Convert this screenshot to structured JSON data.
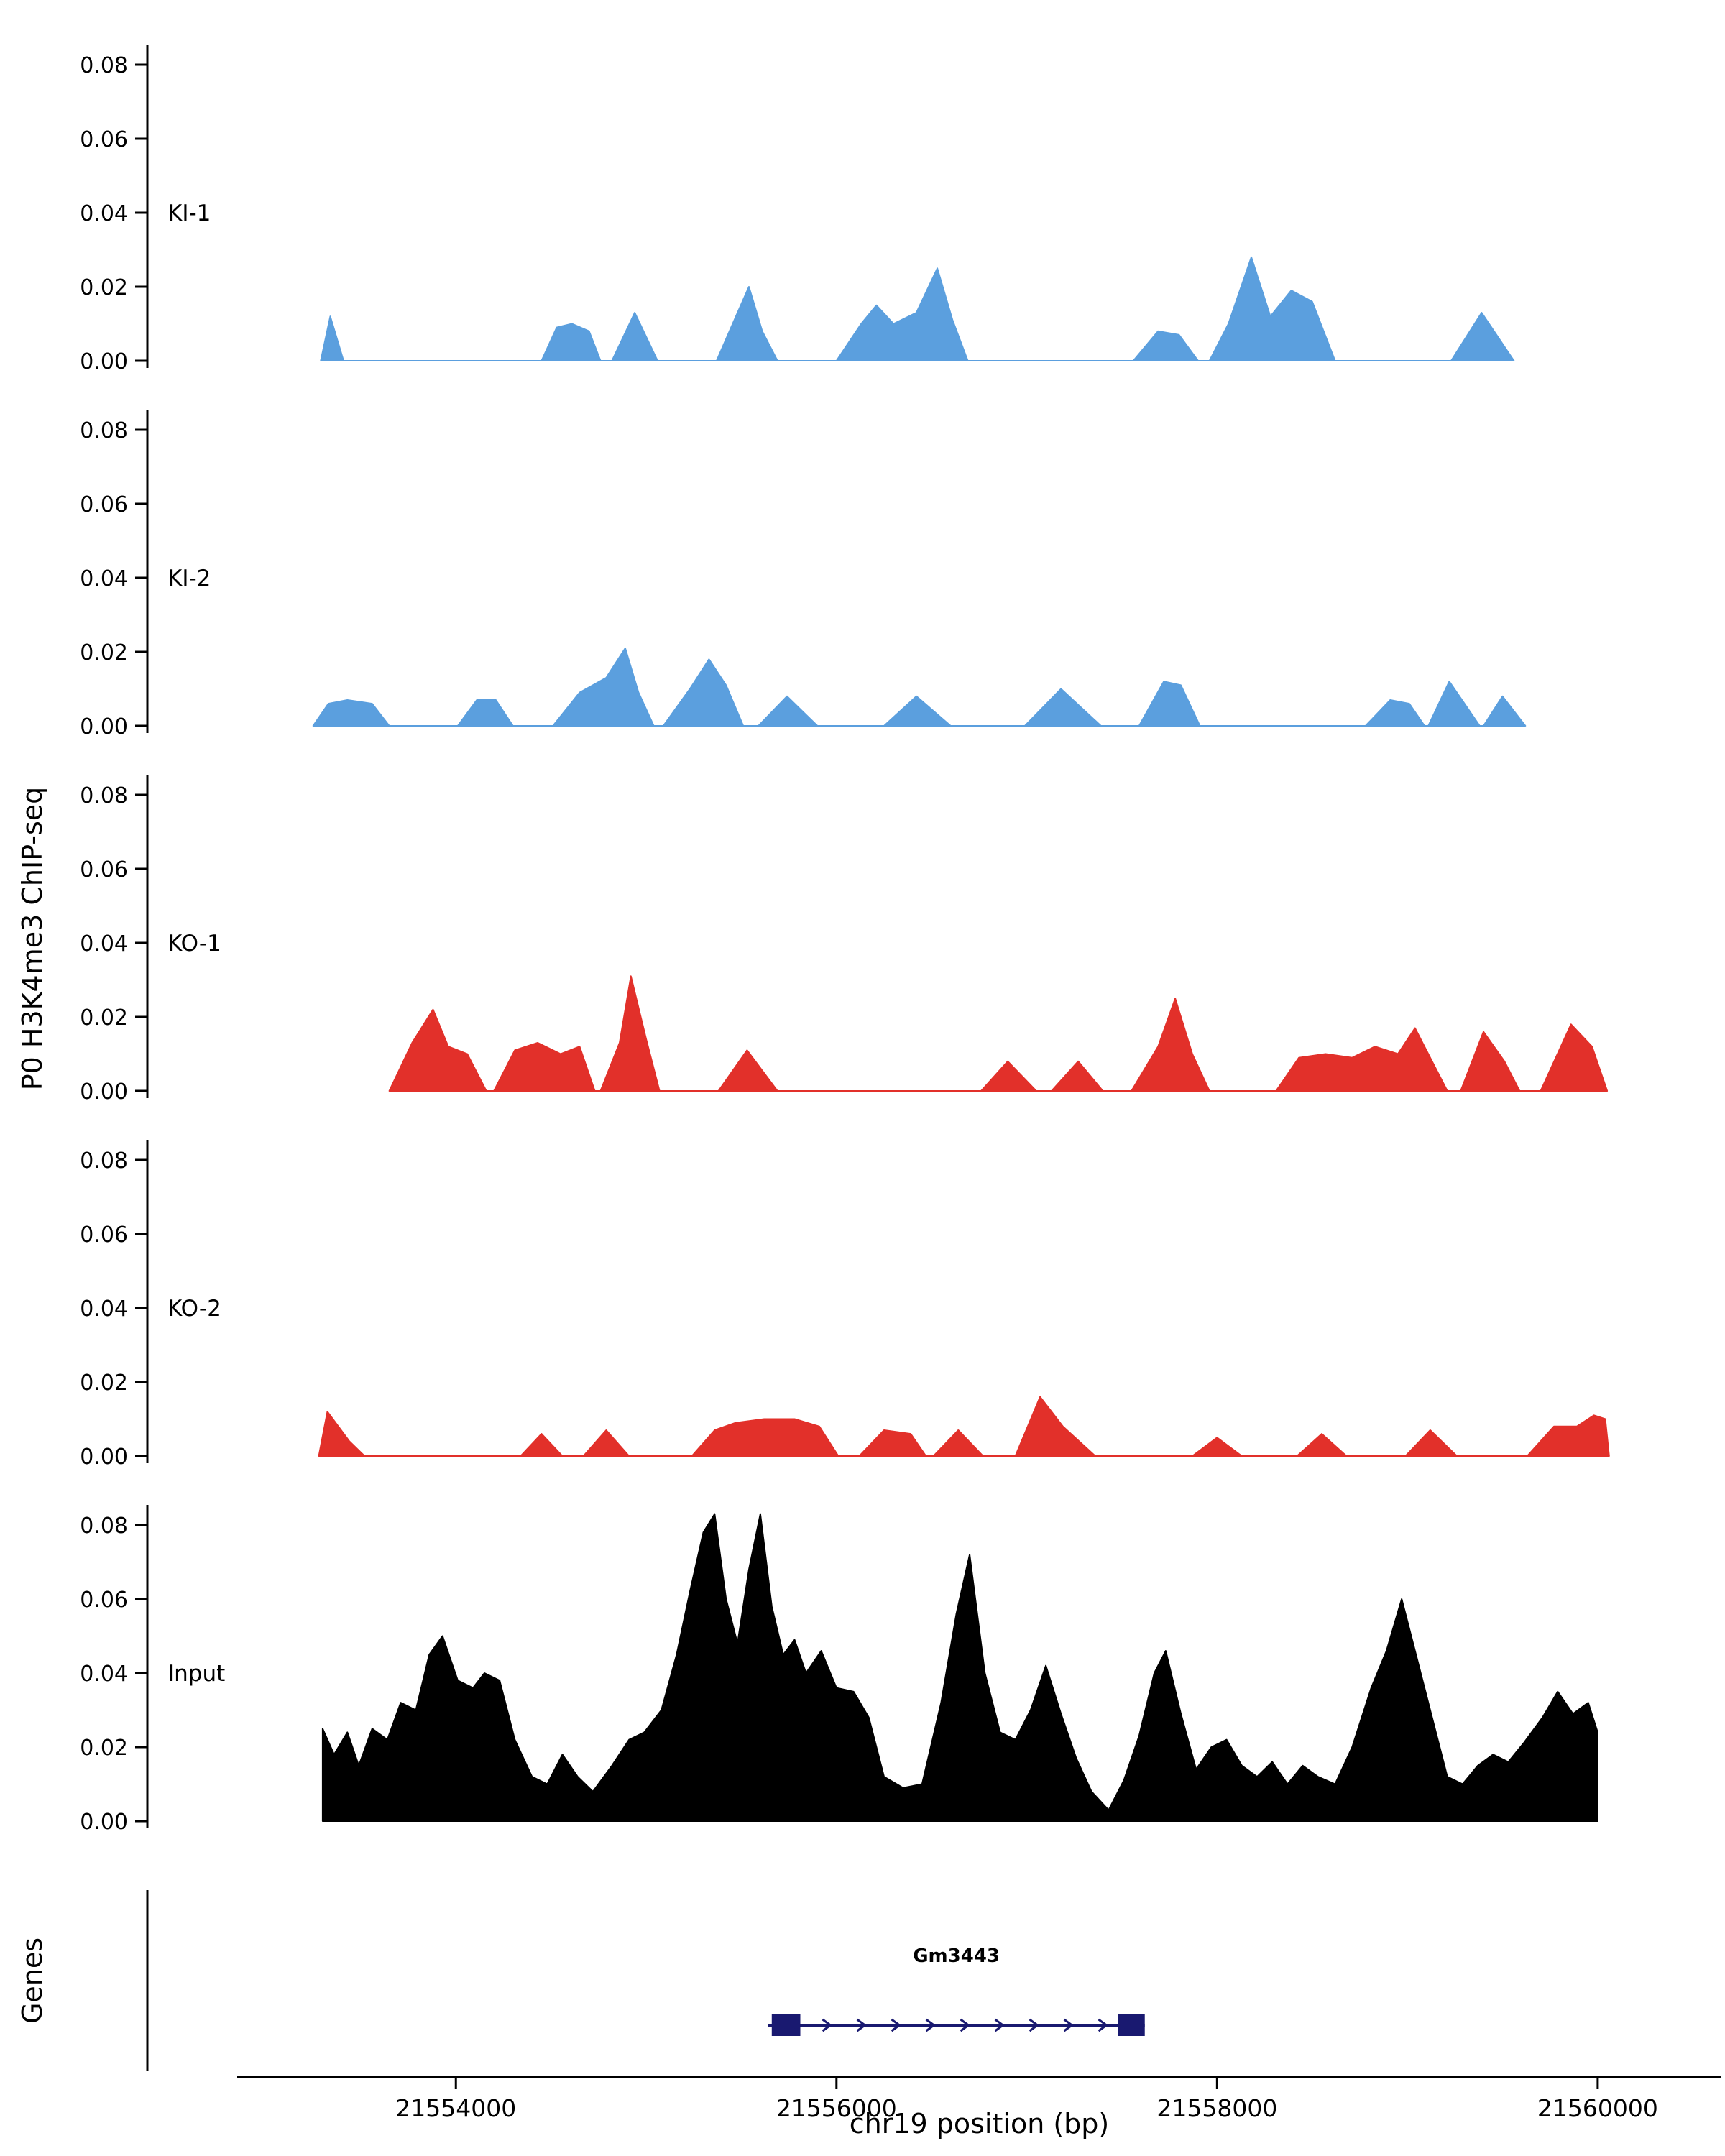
{
  "chart_data": {
    "type": "area",
    "title": "",
    "xlabel": "chr19 position (bp)",
    "ylabel": "P0 H3K4me3 ChIP-seq",
    "genes_panel_label": "Genes",
    "x_axis": {
      "min": 21552900,
      "max": 21560650,
      "ticks": [
        21554000,
        21556000,
        21558000,
        21560000
      ],
      "tick_labels": [
        "21554000",
        "21556000",
        "21558000",
        "21560000"
      ]
    },
    "y_axis": {
      "min": 0,
      "max": 0.08,
      "ticks": [
        0,
        0.02,
        0.04,
        0.06,
        0.08
      ],
      "tick_labels": [
        "0.00",
        "0.02",
        "0.04",
        "0.06",
        "0.08"
      ]
    },
    "colors": {
      "ki_blue": "#5B9FDE",
      "ko_red": "#E2302A",
      "input_black": "#000000",
      "gene_navy": "#191970"
    },
    "tracks": [
      {
        "label": "KI-1",
        "color": "#5B9FDE",
        "points": [
          [
            21553290,
            0
          ],
          [
            21553340,
            0.012
          ],
          [
            21553410,
            0
          ],
          [
            21554450,
            0
          ],
          [
            21554530,
            0.009
          ],
          [
            21554610,
            0.01
          ],
          [
            21554700,
            0.008
          ],
          [
            21554760,
            0
          ],
          [
            21554820,
            0
          ],
          [
            21554940,
            0.013
          ],
          [
            21555060,
            0
          ],
          [
            21555370,
            0
          ],
          [
            21555480,
            0.013
          ],
          [
            21555540,
            0.02
          ],
          [
            21555610,
            0.008
          ],
          [
            21555690,
            0
          ],
          [
            21556000,
            0
          ],
          [
            21556130,
            0.01
          ],
          [
            21556210,
            0.015
          ],
          [
            21556300,
            0.01
          ],
          [
            21556420,
            0.013
          ],
          [
            21556530,
            0.025
          ],
          [
            21556610,
            0.011
          ],
          [
            21556690,
            0
          ],
          [
            21557560,
            0
          ],
          [
            21557690,
            0.008
          ],
          [
            21557800,
            0.007
          ],
          [
            21557900,
            0
          ],
          [
            21557960,
            0
          ],
          [
            21558060,
            0.01
          ],
          [
            21558180,
            0.028
          ],
          [
            21558280,
            0.012
          ],
          [
            21558390,
            0.019
          ],
          [
            21558500,
            0.016
          ],
          [
            21558620,
            0
          ],
          [
            21559230,
            0
          ],
          [
            21559390,
            0.013
          ],
          [
            21559560,
            0
          ]
        ]
      },
      {
        "label": "KI-2",
        "color": "#5B9FDE",
        "points": [
          [
            21553250,
            0
          ],
          [
            21553330,
            0.006
          ],
          [
            21553430,
            0.007
          ],
          [
            21553560,
            0.006
          ],
          [
            21553650,
            0
          ],
          [
            21554010,
            0
          ],
          [
            21554110,
            0.007
          ],
          [
            21554210,
            0.007
          ],
          [
            21554300,
            0
          ],
          [
            21554510,
            0
          ],
          [
            21554650,
            0.009
          ],
          [
            21554790,
            0.013
          ],
          [
            21554890,
            0.021
          ],
          [
            21554960,
            0.009
          ],
          [
            21555040,
            0
          ],
          [
            21555090,
            0
          ],
          [
            21555230,
            0.01
          ],
          [
            21555330,
            0.018
          ],
          [
            21555420,
            0.011
          ],
          [
            21555510,
            0
          ],
          [
            21555590,
            0
          ],
          [
            21555740,
            0.008
          ],
          [
            21555900,
            0
          ],
          [
            21556250,
            0
          ],
          [
            21556420,
            0.008
          ],
          [
            21556600,
            0
          ],
          [
            21556990,
            0
          ],
          [
            21557180,
            0.01
          ],
          [
            21557390,
            0
          ],
          [
            21557590,
            0
          ],
          [
            21557720,
            0.012
          ],
          [
            21557810,
            0.011
          ],
          [
            21557910,
            0
          ],
          [
            21558780,
            0
          ],
          [
            21558910,
            0.007
          ],
          [
            21559010,
            0.006
          ],
          [
            21559090,
            0
          ],
          [
            21559110,
            0
          ],
          [
            21559220,
            0.012
          ],
          [
            21559300,
            0.006
          ],
          [
            21559380,
            0
          ],
          [
            21559400,
            0
          ],
          [
            21559500,
            0.008
          ],
          [
            21559620,
            0
          ]
        ]
      },
      {
        "label": "KO-1",
        "color": "#E2302A",
        "points": [
          [
            21553650,
            0
          ],
          [
            21553770,
            0.013
          ],
          [
            21553880,
            0.022
          ],
          [
            21553960,
            0.012
          ],
          [
            21554060,
            0.01
          ],
          [
            21554160,
            0
          ],
          [
            21554200,
            0
          ],
          [
            21554310,
            0.011
          ],
          [
            21554430,
            0.013
          ],
          [
            21554550,
            0.01
          ],
          [
            21554650,
            0.012
          ],
          [
            21554730,
            0
          ],
          [
            21554760,
            0
          ],
          [
            21554860,
            0.013
          ],
          [
            21554920,
            0.031
          ],
          [
            21555000,
            0.014
          ],
          [
            21555070,
            0
          ],
          [
            21555380,
            0
          ],
          [
            21555530,
            0.011
          ],
          [
            21555690,
            0
          ],
          [
            21556760,
            0
          ],
          [
            21556900,
            0.008
          ],
          [
            21557050,
            0
          ],
          [
            21557130,
            0
          ],
          [
            21557270,
            0.008
          ],
          [
            21557400,
            0
          ],
          [
            21557550,
            0
          ],
          [
            21557690,
            0.012
          ],
          [
            21557780,
            0.025
          ],
          [
            21557870,
            0.01
          ],
          [
            21557960,
            0
          ],
          [
            21558310,
            0
          ],
          [
            21558430,
            0.009
          ],
          [
            21558570,
            0.01
          ],
          [
            21558710,
            0.009
          ],
          [
            21558830,
            0.012
          ],
          [
            21558950,
            0.01
          ],
          [
            21559040,
            0.017
          ],
          [
            21559130,
            0.008
          ],
          [
            21559210,
            0
          ],
          [
            21559280,
            0
          ],
          [
            21559400,
            0.016
          ],
          [
            21559510,
            0.008
          ],
          [
            21559590,
            0
          ],
          [
            21559700,
            0
          ],
          [
            21559860,
            0.018
          ],
          [
            21559970,
            0.012
          ],
          [
            21560050,
            0
          ]
        ]
      },
      {
        "label": "KO-2",
        "color": "#E2302A",
        "points": [
          [
            21553280,
            0
          ],
          [
            21553325,
            0.012
          ],
          [
            21553440,
            0.004
          ],
          [
            21553520,
            0
          ],
          [
            21554340,
            0
          ],
          [
            21554450,
            0.006
          ],
          [
            21554560,
            0
          ],
          [
            21554670,
            0
          ],
          [
            21554790,
            0.007
          ],
          [
            21554910,
            0
          ],
          [
            21555240,
            0
          ],
          [
            21555360,
            0.007
          ],
          [
            21555470,
            0.009
          ],
          [
            21555620,
            0.01
          ],
          [
            21555780,
            0.01
          ],
          [
            21555910,
            0.008
          ],
          [
            21556010,
            0
          ],
          [
            21556120,
            0
          ],
          [
            21556250,
            0.007
          ],
          [
            21556390,
            0.006
          ],
          [
            21556470,
            0
          ],
          [
            21556510,
            0
          ],
          [
            21556640,
            0.007
          ],
          [
            21556770,
            0
          ],
          [
            21556940,
            0
          ],
          [
            21557070,
            0.016
          ],
          [
            21557190,
            0.008
          ],
          [
            21557360,
            0
          ],
          [
            21557870,
            0
          ],
          [
            21558000,
            0.005
          ],
          [
            21558130,
            0
          ],
          [
            21558420,
            0
          ],
          [
            21558550,
            0.006
          ],
          [
            21558680,
            0
          ],
          [
            21558990,
            0
          ],
          [
            21559120,
            0.007
          ],
          [
            21559260,
            0
          ],
          [
            21559630,
            0
          ],
          [
            21559770,
            0.008
          ],
          [
            21559890,
            0.008
          ],
          [
            21559980,
            0.011
          ],
          [
            21560040,
            0.01
          ],
          [
            21560060,
            0
          ]
        ]
      },
      {
        "label": "Input",
        "color": "#000000",
        "points": [
          [
            21553300,
            0
          ],
          [
            21553300,
            0.025
          ],
          [
            21553360,
            0.018
          ],
          [
            21553430,
            0.024
          ],
          [
            21553490,
            0.015
          ],
          [
            21553560,
            0.025
          ],
          [
            21553640,
            0.022
          ],
          [
            21553710,
            0.032
          ],
          [
            21553790,
            0.03
          ],
          [
            21553860,
            0.045
          ],
          [
            21553930,
            0.05
          ],
          [
            21554010,
            0.038
          ],
          [
            21554090,
            0.036
          ],
          [
            21554150,
            0.04
          ],
          [
            21554230,
            0.038
          ],
          [
            21554310,
            0.022
          ],
          [
            21554400,
            0.012
          ],
          [
            21554480,
            0.01
          ],
          [
            21554560,
            0.018
          ],
          [
            21554640,
            0.012
          ],
          [
            21554720,
            0.008
          ],
          [
            21554820,
            0.015
          ],
          [
            21554910,
            0.022
          ],
          [
            21554990,
            0.024
          ],
          [
            21555080,
            0.03
          ],
          [
            21555160,
            0.045
          ],
          [
            21555230,
            0.062
          ],
          [
            21555300,
            0.078
          ],
          [
            21555360,
            0.083
          ],
          [
            21555420,
            0.06
          ],
          [
            21555480,
            0.048
          ],
          [
            21555540,
            0.068
          ],
          [
            21555600,
            0.083
          ],
          [
            21555660,
            0.058
          ],
          [
            21555720,
            0.045
          ],
          [
            21555780,
            0.049
          ],
          [
            21555840,
            0.04
          ],
          [
            21555920,
            0.046
          ],
          [
            21556000,
            0.036
          ],
          [
            21556090,
            0.035
          ],
          [
            21556170,
            0.028
          ],
          [
            21556250,
            0.012
          ],
          [
            21556350,
            0.009
          ],
          [
            21556450,
            0.01
          ],
          [
            21556550,
            0.032
          ],
          [
            21556630,
            0.056
          ],
          [
            21556700,
            0.072
          ],
          [
            21556780,
            0.04
          ],
          [
            21556860,
            0.024
          ],
          [
            21556940,
            0.022
          ],
          [
            21557020,
            0.03
          ],
          [
            21557100,
            0.042
          ],
          [
            21557180,
            0.029
          ],
          [
            21557260,
            0.017
          ],
          [
            21557340,
            0.008
          ],
          [
            21557430,
            0.003
          ],
          [
            21557510,
            0.011
          ],
          [
            21557590,
            0.023
          ],
          [
            21557670,
            0.04
          ],
          [
            21557730,
            0.046
          ],
          [
            21557810,
            0.029
          ],
          [
            21557890,
            0.014
          ],
          [
            21557970,
            0.02
          ],
          [
            21558050,
            0.022
          ],
          [
            21558130,
            0.015
          ],
          [
            21558210,
            0.012
          ],
          [
            21558290,
            0.016
          ],
          [
            21558370,
            0.01
          ],
          [
            21558450,
            0.015
          ],
          [
            21558530,
            0.012
          ],
          [
            21558620,
            0.01
          ],
          [
            21558710,
            0.02
          ],
          [
            21558810,
            0.036
          ],
          [
            21558890,
            0.046
          ],
          [
            21558970,
            0.06
          ],
          [
            21559050,
            0.044
          ],
          [
            21559130,
            0.028
          ],
          [
            21559210,
            0.012
          ],
          [
            21559290,
            0.01
          ],
          [
            21559370,
            0.015
          ],
          [
            21559450,
            0.018
          ],
          [
            21559530,
            0.016
          ],
          [
            21559610,
            0.021
          ],
          [
            21559710,
            0.028
          ],
          [
            21559790,
            0.035
          ],
          [
            21559870,
            0.029
          ],
          [
            21559950,
            0.032
          ],
          [
            21560000,
            0.024
          ],
          [
            21560000,
            0
          ]
        ]
      }
    ],
    "gene": {
      "name": "Gm3443",
      "start": 21555640,
      "end": 21557620,
      "strand": "+",
      "exons": [
        [
          21555660,
          21555810
        ],
        [
          21557480,
          21557620
        ]
      ],
      "color": "#191970"
    }
  }
}
